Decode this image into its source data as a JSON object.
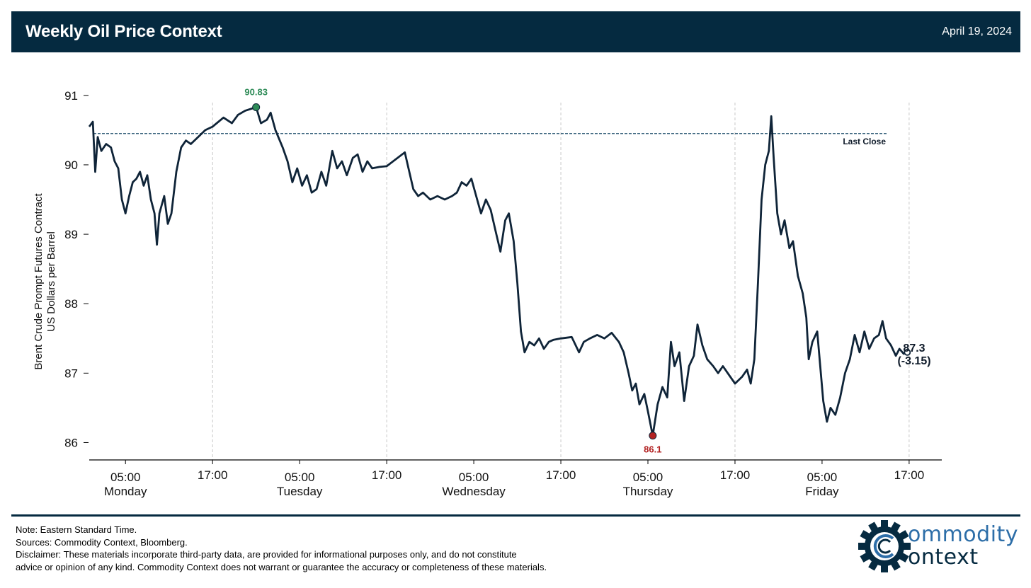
{
  "header": {
    "title": "Weekly Oil Price Context",
    "date": "April 19, 2024"
  },
  "chart_data": {
    "type": "line",
    "ylabel_line1": "Brent Crude Prompt Futures Contract",
    "ylabel_line2": "US Dollars per Barrel",
    "ylim": [
      85.75,
      91.1
    ],
    "yticks": [
      86,
      87,
      88,
      89,
      90,
      91
    ],
    "xlim": [
      "Mon 00:00",
      "Fri 21:30"
    ],
    "xticks": [
      {
        "t": "Mon 05:00",
        "time": "05:00",
        "day": "Monday"
      },
      {
        "t": "Mon 17:00",
        "time": "17:00",
        "day": ""
      },
      {
        "t": "Tue 05:00",
        "time": "05:00",
        "day": "Tuesday"
      },
      {
        "t": "Tue 17:00",
        "time": "17:00",
        "day": ""
      },
      {
        "t": "Wed 05:00",
        "time": "05:00",
        "day": "Wednesday"
      },
      {
        "t": "Wed 17:00",
        "time": "17:00",
        "day": ""
      },
      {
        "t": "Thu 05:00",
        "time": "05:00",
        "day": "Thursday"
      },
      {
        "t": "Thu 17:00",
        "time": "17:00",
        "day": ""
      },
      {
        "t": "Fri 05:00",
        "time": "05:00",
        "day": "Friday"
      },
      {
        "t": "Fri 17:00",
        "time": "17:00",
        "day": ""
      }
    ],
    "grid": "vertical dashed at 17:00",
    "last_close": {
      "value": 90.45,
      "label": "Last Close"
    },
    "high": {
      "x": "Mon 23:00",
      "value": 90.83,
      "label": "90.83"
    },
    "low": {
      "x": "Thu 05:40",
      "value": 86.1,
      "label": "86.1"
    },
    "last": {
      "x": "Fri 16:45",
      "value": 87.3,
      "label_value": "87.3",
      "label_change": "(-3.15)"
    },
    "series": [
      {
        "points": [
          [
            "Mon 00:00",
            90.55
          ],
          [
            "Mon 00:30",
            90.62
          ],
          [
            "Mon 00:50",
            89.9
          ],
          [
            "Mon 01:10",
            90.4
          ],
          [
            "Mon 01:40",
            90.2
          ],
          [
            "Mon 02:20",
            90.3
          ],
          [
            "Mon 03:00",
            90.25
          ],
          [
            "Mon 03:30",
            90.05
          ],
          [
            "Mon 04:00",
            89.95
          ],
          [
            "Mon 04:30",
            89.5
          ],
          [
            "Mon 05:00",
            89.3
          ],
          [
            "Mon 05:30",
            89.55
          ],
          [
            "Mon 06:00",
            89.75
          ],
          [
            "Mon 06:30",
            89.8
          ],
          [
            "Mon 07:00",
            89.9
          ],
          [
            "Mon 07:30",
            89.7
          ],
          [
            "Mon 08:00",
            89.85
          ],
          [
            "Mon 08:30",
            89.5
          ],
          [
            "Mon 09:00",
            89.3
          ],
          [
            "Mon 09:20",
            88.85
          ],
          [
            "Mon 09:40",
            89.3
          ],
          [
            "Mon 10:20",
            89.55
          ],
          [
            "Mon 10:50",
            89.15
          ],
          [
            "Mon 11:20",
            89.3
          ],
          [
            "Mon 12:00",
            89.9
          ],
          [
            "Mon 12:40",
            90.25
          ],
          [
            "Mon 13:20",
            90.35
          ],
          [
            "Mon 14:00",
            90.3
          ],
          [
            "Mon 15:00",
            90.4
          ],
          [
            "Mon 16:00",
            90.5
          ],
          [
            "Mon 17:00",
            90.55
          ],
          [
            "Mon 18:30",
            90.68
          ],
          [
            "Mon 19:40",
            90.6
          ],
          [
            "Mon 20:30",
            90.72
          ],
          [
            "Mon 21:30",
            90.78
          ],
          [
            "Mon 23:00",
            90.83
          ],
          [
            "Mon 23:40",
            90.6
          ],
          [
            "Tue 00:30",
            90.65
          ],
          [
            "Tue 01:00",
            90.75
          ],
          [
            "Tue 01:40",
            90.5
          ],
          [
            "Tue 02:40",
            90.25
          ],
          [
            "Tue 03:20",
            90.05
          ],
          [
            "Tue 04:00",
            89.75
          ],
          [
            "Tue 04:40",
            89.95
          ],
          [
            "Tue 05:20",
            89.7
          ],
          [
            "Tue 06:00",
            89.85
          ],
          [
            "Tue 06:40",
            89.6
          ],
          [
            "Tue 07:20",
            89.65
          ],
          [
            "Tue 08:00",
            89.9
          ],
          [
            "Tue 08:40",
            89.7
          ],
          [
            "Tue 09:30",
            90.2
          ],
          [
            "Tue 10:10",
            89.95
          ],
          [
            "Tue 10:50",
            90.05
          ],
          [
            "Tue 11:30",
            89.85
          ],
          [
            "Tue 12:20",
            90.1
          ],
          [
            "Tue 13:00",
            90.15
          ],
          [
            "Tue 13:40",
            89.9
          ],
          [
            "Tue 14:20",
            90.05
          ],
          [
            "Tue 15:00",
            89.95
          ],
          [
            "Tue 16:00",
            89.97
          ],
          [
            "Tue 17:00",
            89.98
          ],
          [
            "Tue 19:30",
            90.18
          ],
          [
            "Tue 20:00",
            89.95
          ],
          [
            "Tue 20:40",
            89.65
          ],
          [
            "Tue 21:20",
            89.55
          ],
          [
            "Tue 22:00",
            89.6
          ],
          [
            "Tue 23:00",
            89.5
          ],
          [
            "Wed 00:00",
            89.55
          ],
          [
            "Wed 01:00",
            89.5
          ],
          [
            "Wed 02:00",
            89.55
          ],
          [
            "Wed 02:40",
            89.6
          ],
          [
            "Wed 03:20",
            89.75
          ],
          [
            "Wed 04:00",
            89.7
          ],
          [
            "Wed 04:40",
            89.8
          ],
          [
            "Wed 05:20",
            89.55
          ],
          [
            "Wed 06:00",
            89.3
          ],
          [
            "Wed 06:40",
            89.5
          ],
          [
            "Wed 07:20",
            89.35
          ],
          [
            "Wed 08:00",
            89.05
          ],
          [
            "Wed 08:40",
            88.75
          ],
          [
            "Wed 09:20",
            89.2
          ],
          [
            "Wed 09:50",
            89.3
          ],
          [
            "Wed 10:30",
            88.9
          ],
          [
            "Wed 11:00",
            88.3
          ],
          [
            "Wed 11:30",
            87.6
          ],
          [
            "Wed 12:00",
            87.3
          ],
          [
            "Wed 12:40",
            87.45
          ],
          [
            "Wed 13:20",
            87.4
          ],
          [
            "Wed 14:00",
            87.5
          ],
          [
            "Wed 14:40",
            87.35
          ],
          [
            "Wed 15:20",
            87.45
          ],
          [
            "Wed 16:00",
            87.48
          ],
          [
            "Wed 17:00",
            87.5
          ],
          [
            "Wed 18:30",
            87.52
          ],
          [
            "Wed 19:30",
            87.3
          ],
          [
            "Wed 20:10",
            87.45
          ],
          [
            "Wed 21:00",
            87.5
          ],
          [
            "Wed 22:00",
            87.55
          ],
          [
            "Wed 23:00",
            87.5
          ],
          [
            "Thu 00:00",
            87.58
          ],
          [
            "Thu 01:00",
            87.45
          ],
          [
            "Thu 01:40",
            87.3
          ],
          [
            "Thu 02:20",
            87.0
          ],
          [
            "Thu 02:50",
            86.75
          ],
          [
            "Thu 03:20",
            86.85
          ],
          [
            "Thu 03:50",
            86.55
          ],
          [
            "Thu 04:30",
            86.7
          ],
          [
            "Thu 05:00",
            86.45
          ],
          [
            "Thu 05:40",
            86.1
          ],
          [
            "Thu 06:20",
            86.55
          ],
          [
            "Thu 07:00",
            86.8
          ],
          [
            "Thu 07:40",
            86.65
          ],
          [
            "Thu 08:10",
            87.45
          ],
          [
            "Thu 08:40",
            87.1
          ],
          [
            "Thu 09:20",
            87.3
          ],
          [
            "Thu 10:00",
            86.6
          ],
          [
            "Thu 10:40",
            87.1
          ],
          [
            "Thu 11:20",
            87.25
          ],
          [
            "Thu 11:50",
            87.7
          ],
          [
            "Thu 12:30",
            87.4
          ],
          [
            "Thu 13:10",
            87.2
          ],
          [
            "Thu 14:00",
            87.1
          ],
          [
            "Thu 14:40",
            87.0
          ],
          [
            "Thu 15:20",
            87.1
          ],
          [
            "Thu 16:00",
            87.0
          ],
          [
            "Thu 17:00",
            86.85
          ],
          [
            "Thu 18:00",
            86.95
          ],
          [
            "Thu 18:40",
            87.05
          ],
          [
            "Thu 19:10",
            86.85
          ],
          [
            "Thu 19:40",
            87.2
          ],
          [
            "Thu 20:10",
            88.3
          ],
          [
            "Thu 20:40",
            89.5
          ],
          [
            "Thu 21:10",
            90.0
          ],
          [
            "Thu 21:40",
            90.2
          ],
          [
            "Thu 22:00",
            90.7
          ],
          [
            "Thu 22:20",
            90.1
          ],
          [
            "Thu 22:50",
            89.3
          ],
          [
            "Thu 23:20",
            89.0
          ],
          [
            "Thu 23:50",
            89.2
          ],
          [
            "Fri 00:30",
            88.8
          ],
          [
            "Fri 01:00",
            88.9
          ],
          [
            "Fri 01:40",
            88.4
          ],
          [
            "Fri 02:20",
            88.15
          ],
          [
            "Fri 02:50",
            87.8
          ],
          [
            "Fri 03:10",
            87.2
          ],
          [
            "Fri 03:40",
            87.45
          ],
          [
            "Fri 04:20",
            87.6
          ],
          [
            "Fri 04:50",
            87.0
          ],
          [
            "Fri 05:10",
            86.6
          ],
          [
            "Fri 05:40",
            86.3
          ],
          [
            "Fri 06:10",
            86.5
          ],
          [
            "Fri 06:50",
            86.4
          ],
          [
            "Fri 07:30",
            86.65
          ],
          [
            "Fri 08:10",
            87.0
          ],
          [
            "Fri 08:50",
            87.2
          ],
          [
            "Fri 09:30",
            87.55
          ],
          [
            "Fri 10:10",
            87.3
          ],
          [
            "Fri 10:50",
            87.6
          ],
          [
            "Fri 11:30",
            87.35
          ],
          [
            "Fri 12:10",
            87.5
          ],
          [
            "Fri 12:50",
            87.55
          ],
          [
            "Fri 13:20",
            87.75
          ],
          [
            "Fri 13:50",
            87.5
          ],
          [
            "Fri 14:30",
            87.4
          ],
          [
            "Fri 15:10",
            87.25
          ],
          [
            "Fri 15:40",
            87.35
          ],
          [
            "Fri 16:15",
            87.28
          ],
          [
            "Fri 16:45",
            87.3
          ]
        ]
      }
    ],
    "colors": {
      "line": "#0f2438",
      "high": "#2e8b57",
      "low": "#b22222",
      "refline": "#1f4e6b"
    }
  },
  "footer": {
    "note": "Note: Eastern Standard Time.",
    "sources": "Sources: Commodity Context, Bloomberg.",
    "disclaimer_line1": "Disclaimer: These materials incorporate third-party data, are provided for informational purposes only, and do not constitute",
    "disclaimer_line2": "advice or opinion of any kind. Commodity Context does not warrant or guarantee the accuracy or completeness of these materials."
  },
  "logo": {
    "word1": "ommodity",
    "word2": "ontext",
    "icon": "gear-c-icon"
  }
}
